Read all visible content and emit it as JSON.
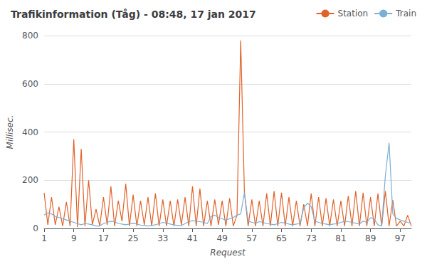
{
  "chart_data": {
    "type": "line",
    "title": "Trafikinformation (Tåg) - 08:48, 17 jan 2017",
    "xlabel": "Request",
    "ylabel": "Millisec.",
    "x": [
      1,
      2,
      3,
      4,
      5,
      6,
      7,
      8,
      9,
      10,
      11,
      12,
      13,
      14,
      15,
      16,
      17,
      18,
      19,
      20,
      21,
      22,
      23,
      24,
      25,
      26,
      27,
      28,
      29,
      30,
      31,
      32,
      33,
      34,
      35,
      36,
      37,
      38,
      39,
      40,
      41,
      42,
      43,
      44,
      45,
      46,
      47,
      48,
      49,
      50,
      51,
      52,
      53,
      54,
      55,
      56,
      57,
      58,
      59,
      60,
      61,
      62,
      63,
      64,
      65,
      66,
      67,
      68,
      69,
      70,
      71,
      72,
      73,
      74,
      75,
      76,
      77,
      78,
      79,
      80,
      81,
      82,
      83,
      84,
      85,
      86,
      87,
      88,
      89,
      90,
      91,
      92,
      93,
      94,
      95,
      96,
      97,
      98,
      99,
      100
    ],
    "xlim": [
      1,
      100
    ],
    "xticks": [
      1,
      9,
      17,
      25,
      33,
      41,
      49,
      57,
      65,
      73,
      81,
      89,
      97
    ],
    "ylim": [
      0,
      800
    ],
    "yticks": [
      0,
      200,
      400,
      600,
      800
    ],
    "grid": true,
    "legend": "upper right",
    "series": [
      {
        "name": "Station",
        "color": "#e0622a",
        "values": [
          148,
          15,
          130,
          15,
          90,
          10,
          110,
          10,
          370,
          5,
          330,
          10,
          200,
          15,
          80,
          10,
          130,
          15,
          175,
          10,
          115,
          30,
          185,
          10,
          140,
          10,
          115,
          15,
          130,
          10,
          145,
          10,
          120,
          10,
          115,
          10,
          120,
          15,
          130,
          10,
          175,
          10,
          165,
          10,
          115,
          10,
          120,
          15,
          115,
          10,
          125,
          10,
          55,
          780,
          148,
          10,
          120,
          10,
          115,
          10,
          145,
          10,
          155,
          10,
          148,
          10,
          130,
          10,
          115,
          10,
          100,
          10,
          145,
          10,
          130,
          10,
          125,
          10,
          120,
          10,
          115,
          10,
          135,
          10,
          155,
          10,
          148,
          10,
          130,
          10,
          145,
          10,
          155,
          10,
          118,
          10,
          30,
          10,
          55,
          10
        ]
      },
      {
        "name": "Train",
        "color": "#7bafd4",
        "values": [
          55,
          65,
          60,
          50,
          45,
          40,
          35,
          30,
          25,
          20,
          15,
          20,
          18,
          15,
          10,
          10,
          20,
          25,
          30,
          28,
          20,
          18,
          15,
          18,
          22,
          18,
          14,
          12,
          10,
          12,
          15,
          20,
          25,
          22,
          18,
          15,
          12,
          12,
          20,
          28,
          32,
          30,
          28,
          25,
          20,
          50,
          55,
          45,
          40,
          35,
          40,
          45,
          55,
          60,
          148,
          30,
          25,
          22,
          28,
          25,
          20,
          18,
          15,
          20,
          25,
          22,
          18,
          15,
          18,
          20,
          85,
          105,
          90,
          30,
          25,
          20,
          18,
          15,
          18,
          20,
          25,
          30,
          28,
          25,
          22,
          18,
          30,
          25,
          45,
          38,
          15,
          10,
          220,
          355,
          60,
          42,
          35,
          30,
          25,
          20
        ]
      }
    ]
  }
}
